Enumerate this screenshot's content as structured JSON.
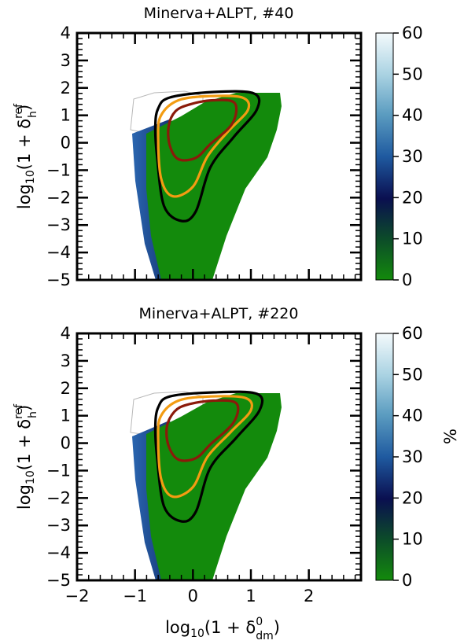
{
  "chart_data": [
    {
      "type": "heatmap",
      "title": "Minerva+ALPT, #40",
      "xlabel": "",
      "ylabel_main": "log",
      "ylabel_sub": "10",
      "ylabel_paren": "(1 + δ",
      "ylabel_sup": "ref",
      "ylabel_delta_sub": "h",
      "ylabel_close": ")",
      "xlim": [
        -2,
        2.9
      ],
      "ylim": [
        -5,
        4
      ],
      "xticks": [],
      "yticks": [
        "4",
        "3",
        "2",
        "1",
        "0",
        "−1",
        "−2",
        "−3",
        "−4",
        "−5"
      ],
      "colorbar": {
        "ticks": [
          "60",
          "50",
          "40",
          "30",
          "20",
          "10",
          "0"
        ],
        "range": [
          0,
          60
        ],
        "label": ""
      },
      "contours": [
        {
          "level": "inner",
          "color": "#8b1a0a",
          "xc": 0.12,
          "points": [
            [
              -0.05,
              1.4
            ],
            [
              0.35,
              1.55
            ],
            [
              0.72,
              1.45
            ],
            [
              0.68,
              0.7
            ],
            [
              0.3,
              -0.05
            ],
            [
              0.05,
              -0.55
            ],
            [
              -0.25,
              -0.6
            ],
            [
              -0.4,
              -0.1
            ],
            [
              -0.42,
              0.6
            ],
            [
              -0.3,
              1.15
            ]
          ]
        },
        {
          "level": "middle",
          "color": "#f39c12",
          "points": [
            [
              -0.25,
              1.55
            ],
            [
              0.3,
              1.7
            ],
            [
              0.85,
              1.65
            ],
            [
              0.95,
              1.2
            ],
            [
              0.6,
              0.4
            ],
            [
              0.25,
              -0.5
            ],
            [
              0.0,
              -1.6
            ],
            [
              -0.35,
              -1.95
            ],
            [
              -0.55,
              -1.3
            ],
            [
              -0.6,
              0.2
            ],
            [
              -0.55,
              1.0
            ]
          ]
        },
        {
          "level": "outer",
          "color": "#000000",
          "points": [
            [
              -0.4,
              1.65
            ],
            [
              0.35,
              1.85
            ],
            [
              1.05,
              1.8
            ],
            [
              1.1,
              1.2
            ],
            [
              0.7,
              0.2
            ],
            [
              0.3,
              -0.9
            ],
            [
              0.05,
              -2.5
            ],
            [
              -0.2,
              -2.85
            ],
            [
              -0.5,
              -2.3
            ],
            [
              -0.62,
              -0.5
            ],
            [
              -0.65,
              0.6
            ],
            [
              -0.6,
              1.25
            ]
          ]
        }
      ]
    },
    {
      "type": "heatmap",
      "title": "Minerva+ALPT, #220",
      "xlabel_main": "log",
      "xlabel_sub": "10",
      "xlabel_paren": "(1 + δ",
      "xlabel_sup": "0",
      "xlabel_delta_sub": "dm",
      "xlabel_close": ")",
      "ylabel_main": "log",
      "ylabel_sub": "10",
      "ylabel_paren": "(1 + δ",
      "ylabel_sup": "ref",
      "ylabel_delta_sub": "h",
      "ylabel_close": ")",
      "xlim": [
        -2,
        2.9
      ],
      "ylim": [
        -5,
        4
      ],
      "xticks": [
        "−2",
        "−1",
        "0",
        "1",
        "2"
      ],
      "yticks": [
        "4",
        "3",
        "2",
        "1",
        "0",
        "−1",
        "−2",
        "−3",
        "−4",
        "−5"
      ],
      "colorbar": {
        "ticks": [
          "60",
          "50",
          "40",
          "30",
          "20",
          "10",
          "0"
        ],
        "range": [
          0,
          60
        ],
        "label": "%"
      },
      "contours": [
        {
          "level": "inner",
          "color": "#8b1a0a",
          "points": [
            [
              -0.1,
              1.4
            ],
            [
              0.35,
              1.55
            ],
            [
              0.75,
              1.45
            ],
            [
              0.7,
              0.75
            ],
            [
              0.3,
              -0.05
            ],
            [
              0.05,
              -0.55
            ],
            [
              -0.25,
              -0.6
            ],
            [
              -0.42,
              -0.1
            ],
            [
              -0.45,
              0.6
            ],
            [
              -0.32,
              1.15
            ]
          ]
        },
        {
          "level": "middle",
          "color": "#f39c12",
          "points": [
            [
              -0.25,
              1.55
            ],
            [
              0.3,
              1.7
            ],
            [
              0.9,
              1.65
            ],
            [
              1.0,
              1.2
            ],
            [
              0.65,
              0.4
            ],
            [
              0.25,
              -0.5
            ],
            [
              0.0,
              -1.6
            ],
            [
              -0.35,
              -1.95
            ],
            [
              -0.55,
              -1.3
            ],
            [
              -0.6,
              0.2
            ],
            [
              -0.55,
              1.0
            ]
          ]
        },
        {
          "level": "outer",
          "color": "#000000",
          "points": [
            [
              -0.4,
              1.7
            ],
            [
              0.35,
              1.85
            ],
            [
              1.1,
              1.8
            ],
            [
              1.15,
              1.2
            ],
            [
              0.75,
              0.2
            ],
            [
              0.3,
              -0.9
            ],
            [
              0.05,
              -2.5
            ],
            [
              -0.2,
              -2.85
            ],
            [
              -0.5,
              -2.3
            ],
            [
              -0.62,
              -0.5
            ],
            [
              -0.65,
              0.6
            ],
            [
              -0.6,
              1.3
            ]
          ]
        }
      ]
    }
  ]
}
